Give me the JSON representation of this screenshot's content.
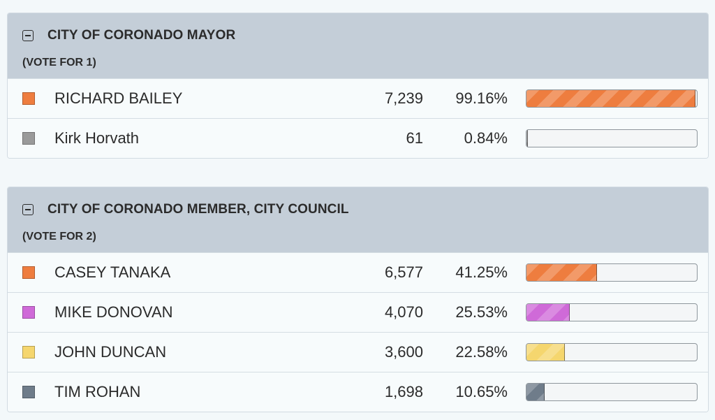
{
  "contests": [
    {
      "title": "CITY OF CORONADO MAYOR",
      "vote_for": "(VOTE FOR 1)",
      "candidates": [
        {
          "name": "RICHARD BAILEY",
          "votes": "7,239",
          "percent": "99.16%",
          "share": 0.9916,
          "color": "#ee7d3f"
        },
        {
          "name": "Kirk Horvath",
          "votes": "61",
          "percent": "0.84%",
          "share": 0.0084,
          "color": "#9a9a9a"
        }
      ]
    },
    {
      "title": "CITY OF CORONADO MEMBER, CITY COUNCIL",
      "vote_for": "(VOTE FOR 2)",
      "candidates": [
        {
          "name": "CASEY TANAKA",
          "votes": "6,577",
          "percent": "41.25%",
          "share": 0.4125,
          "color": "#ee7d3f"
        },
        {
          "name": "MIKE DONOVAN",
          "votes": "4,070",
          "percent": "25.53%",
          "share": 0.2553,
          "color": "#cf6ad8"
        },
        {
          "name": "JOHN DUNCAN",
          "votes": "3,600",
          "percent": "22.58%",
          "share": 0.2258,
          "color": "#f5d66e"
        },
        {
          "name": "TIM ROHAN",
          "votes": "1,698",
          "percent": "10.65%",
          "share": 0.1065,
          "color": "#6f7c8a"
        }
      ]
    }
  ],
  "icons": {
    "collapse": "minus-square-icon"
  }
}
